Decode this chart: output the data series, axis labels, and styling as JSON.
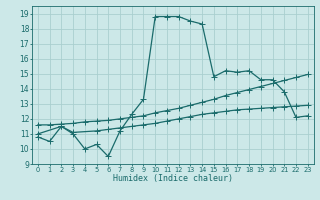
{
  "title": "",
  "xlabel": "Humidex (Indice chaleur)",
  "bg_color": "#cce8e8",
  "grid_color": "#aacfcf",
  "line_color": "#1a6b6b",
  "xlim": [
    -0.5,
    23.5
  ],
  "ylim": [
    9,
    19.5
  ],
  "yticks": [
    9,
    10,
    11,
    12,
    13,
    14,
    15,
    16,
    17,
    18,
    19
  ],
  "xticks": [
    0,
    1,
    2,
    3,
    4,
    5,
    6,
    7,
    8,
    9,
    10,
    11,
    12,
    13,
    14,
    15,
    16,
    17,
    18,
    19,
    20,
    21,
    22,
    23
  ],
  "line1_x": [
    0,
    1,
    2,
    3,
    4,
    5,
    6,
    7,
    8,
    9,
    10,
    11,
    12,
    13,
    14,
    15,
    16,
    17,
    18,
    19,
    20,
    21,
    22,
    23
  ],
  "line1_y": [
    10.8,
    10.5,
    11.5,
    11.0,
    10.0,
    10.3,
    9.5,
    11.2,
    12.3,
    13.3,
    18.8,
    18.8,
    18.8,
    18.5,
    18.3,
    14.8,
    15.2,
    15.1,
    15.2,
    14.6,
    14.6,
    13.8,
    12.1,
    12.2
  ],
  "line2_x": [
    0,
    2,
    3,
    5,
    6,
    7,
    8,
    9,
    10,
    11,
    12,
    13,
    14,
    15,
    16,
    17,
    18,
    19,
    20,
    21,
    22,
    23
  ],
  "line2_y": [
    11.0,
    11.5,
    11.1,
    11.2,
    11.3,
    11.4,
    11.5,
    11.6,
    11.7,
    11.85,
    12.0,
    12.15,
    12.3,
    12.4,
    12.5,
    12.6,
    12.65,
    12.7,
    12.75,
    12.8,
    12.85,
    12.9
  ],
  "line3_x": [
    0,
    1,
    2,
    3,
    4,
    5,
    6,
    7,
    8,
    9,
    10,
    11,
    12,
    13,
    14,
    15,
    16,
    17,
    18,
    19,
    20,
    21,
    22,
    23
  ],
  "line3_y": [
    11.6,
    11.6,
    11.65,
    11.7,
    11.8,
    11.85,
    11.9,
    12.0,
    12.1,
    12.2,
    12.4,
    12.55,
    12.7,
    12.9,
    13.1,
    13.3,
    13.55,
    13.75,
    13.95,
    14.15,
    14.35,
    14.55,
    14.75,
    14.95
  ],
  "marker": "+",
  "markersize": 4,
  "linewidth": 0.9
}
